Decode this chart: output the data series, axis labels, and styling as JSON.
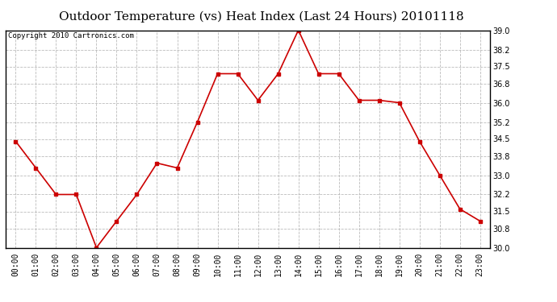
{
  "title": "Outdoor Temperature (vs) Heat Index (Last 24 Hours) 20101118",
  "copyright_text": "Copyright 2010 Cartronics.com",
  "x_labels": [
    "00:00",
    "01:00",
    "02:00",
    "03:00",
    "04:00",
    "05:00",
    "06:00",
    "07:00",
    "08:00",
    "09:00",
    "10:00",
    "11:00",
    "12:00",
    "13:00",
    "14:00",
    "15:00",
    "16:00",
    "17:00",
    "18:00",
    "19:00",
    "20:00",
    "21:00",
    "22:00",
    "23:00"
  ],
  "y_values": [
    34.4,
    33.3,
    32.2,
    32.2,
    30.0,
    31.1,
    32.2,
    33.5,
    33.3,
    35.2,
    37.2,
    37.2,
    36.1,
    37.2,
    39.0,
    37.2,
    37.2,
    36.1,
    36.1,
    36.0,
    34.4,
    33.0,
    31.6,
    31.1
  ],
  "line_color": "#cc0000",
  "marker": "s",
  "marker_size": 3,
  "background_color": "#ffffff",
  "grid_color": "#aaaaaa",
  "ylim": [
    30.0,
    39.0
  ],
  "yticks": [
    30.0,
    30.8,
    31.5,
    32.2,
    33.0,
    33.8,
    34.5,
    35.2,
    36.0,
    36.8,
    37.5,
    38.2,
    39.0
  ],
  "title_fontsize": 11,
  "copyright_fontsize": 6.5,
  "tick_fontsize": 7,
  "axes_border_color": "#000000"
}
